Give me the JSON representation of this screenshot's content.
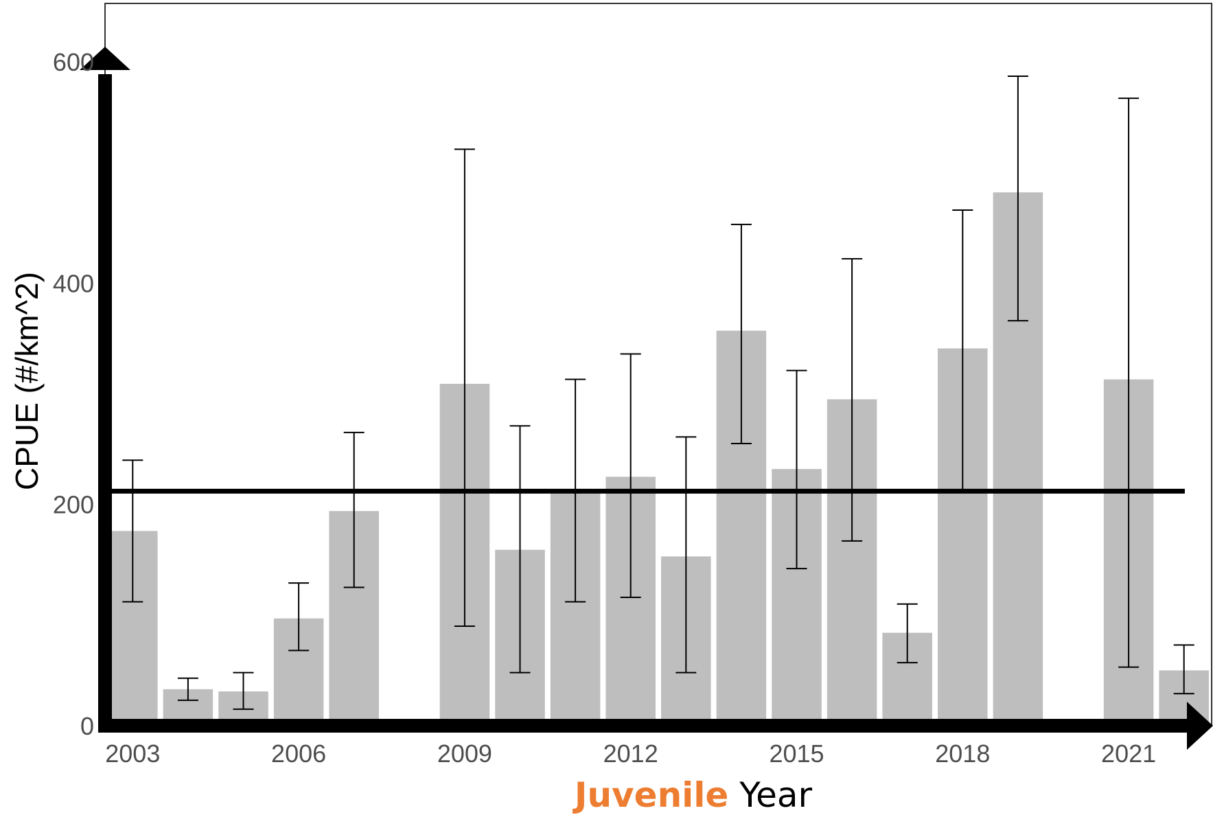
{
  "chart_data": {
    "type": "bar",
    "title": "",
    "xlabel": "Juvenile Year",
    "xlabel_parts": [
      {
        "text": "Juvenile",
        "color": "#ED7D31",
        "bold": true
      },
      {
        "text": " Year",
        "color": "#000000",
        "bold": false
      }
    ],
    "ylabel": "CPUE (#/km^2)",
    "ylim": [
      0,
      600
    ],
    "xlim": [
      2002.5,
      2022.5
    ],
    "y_ticks": [
      0,
      200,
      400,
      600
    ],
    "x_ticks": [
      2003,
      2006,
      2009,
      2012,
      2015,
      2018,
      2021
    ],
    "grid": false,
    "bar_color": "#BEBEBE",
    "reference_line": {
      "y": 212
    },
    "series": [
      {
        "x": [
          2003,
          2004,
          2005,
          2006,
          2007,
          2009,
          2010,
          2011,
          2012,
          2013,
          2014,
          2015,
          2016,
          2017,
          2018,
          2019,
          2021,
          2022
        ],
        "values": [
          176,
          33,
          31,
          97,
          194,
          309,
          159,
          213,
          225,
          153,
          357,
          232,
          295,
          84,
          341,
          482,
          313,
          50
        ],
        "error_low": [
          112,
          23,
          15,
          68,
          125,
          90,
          48,
          112,
          116,
          48,
          255,
          142,
          167,
          57,
          211,
          366,
          53,
          29
        ],
        "error_high": [
          240,
          43,
          48,
          129,
          265,
          521,
          271,
          313,
          336,
          261,
          453,
          321,
          422,
          110,
          466,
          587,
          567,
          73
        ]
      }
    ]
  }
}
